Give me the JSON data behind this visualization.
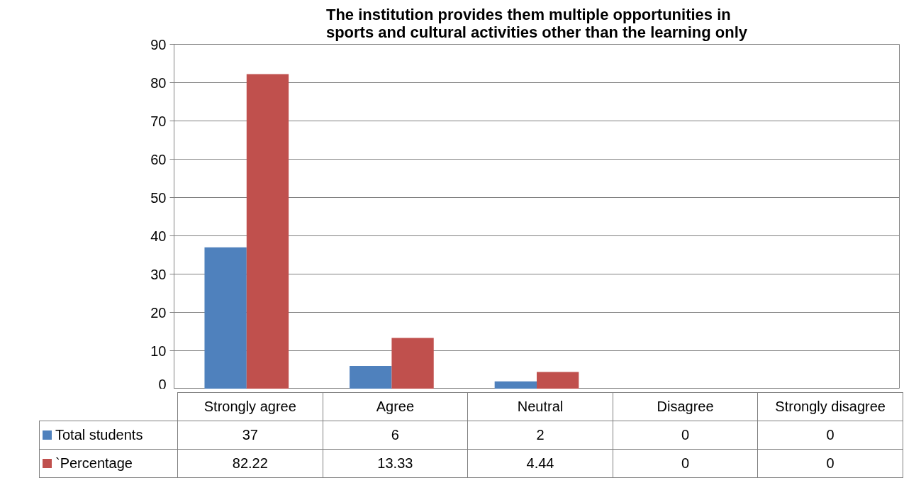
{
  "chart_data": {
    "type": "bar",
    "title": "The institution provides them multiple opportunities in sports and cultural activities other than the learning only",
    "categories": [
      "Strongly agree",
      "Agree",
      "Neutral",
      "Disagree",
      "Strongly disagree"
    ],
    "series": [
      {
        "name": "Total students",
        "color": "#4f81bd",
        "values": [
          37,
          6,
          2,
          0,
          0
        ]
      },
      {
        "name": "`Percentage",
        "color": "#c0504d",
        "values": [
          82.22,
          13.33,
          4.44,
          0,
          0
        ]
      }
    ],
    "ylim": [
      0,
      90
    ],
    "yticks": [
      0,
      10,
      20,
      30,
      40,
      50,
      60,
      70,
      80,
      90
    ],
    "grid": "y",
    "legend": "bottom",
    "data_labels": true
  }
}
